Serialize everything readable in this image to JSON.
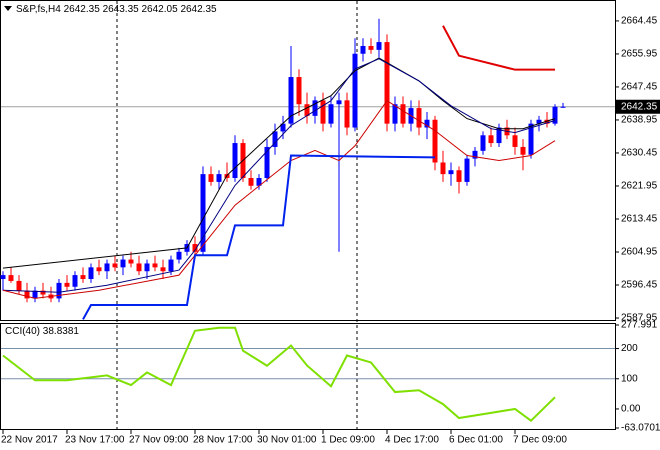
{
  "chart_data": {
    "type": "candlestick",
    "title": "S&P,fs,H4",
    "categories": [
      "22 Nov 2017",
      null,
      null,
      null,
      null,
      null,
      null,
      null,
      "23 Nov 17:00",
      null,
      null,
      null,
      null,
      null,
      null,
      null,
      "27 Nov 09:00",
      null,
      null,
      null,
      null,
      null,
      null,
      null,
      "28 Nov 17:00",
      null,
      null,
      null,
      null,
      null,
      null,
      null,
      "30 Nov 01:00",
      null,
      null,
      null,
      null,
      null,
      null,
      null,
      "1 Dec 09:00",
      null,
      null,
      null,
      null,
      null,
      null,
      null,
      "4 Dec 17:00",
      null,
      null,
      null,
      null,
      null,
      null,
      null,
      "6 Dec 01:00",
      null,
      null,
      null,
      null,
      null,
      null,
      null,
      "7 Dec 09:00",
      null,
      null,
      null,
      null,
      null,
      null
    ],
    "open": [
      2598,
      2599,
      2597.5,
      2595,
      2593,
      2595,
      2594,
      2593,
      2597,
      2596,
      2599,
      2598,
      2601,
      2600,
      2602,
      2601,
      2603,
      2602,
      2600,
      2602,
      2601,
      2600,
      2603,
      2605,
      2607,
      2605,
      2625,
      2623,
      2625,
      2624,
      2633,
      2624,
      2622,
      2624,
      2632,
      2636,
      2638,
      2650,
      2643,
      2640,
      2644,
      2638,
      2643,
      2644,
      2637,
      2656,
      2658,
      2657,
      2659,
      2638,
      2643,
      2638,
      2642,
      2637,
      2639,
      2628,
      2625,
      2626,
      2623,
      2629,
      2631,
      2635,
      2633,
      2637,
      2635,
      2632,
      2630,
      2638,
      2639,
      2638,
      2642.35
    ],
    "high": [
      2600,
      2601,
      2599,
      2597,
      2596,
      2597,
      2596,
      2598,
      2599,
      2600,
      2601,
      2602,
      2603,
      2603,
      2604,
      2604,
      2605,
      2604,
      2603,
      2604,
      2603,
      2604,
      2606,
      2608,
      2609,
      2627,
      2627,
      2626,
      2628,
      2635,
      2634,
      2626,
      2625,
      2634,
      2638,
      2640,
      2658,
      2652,
      2646,
      2645,
      2646,
      2645,
      2646,
      2646,
      2660,
      2660,
      2660,
      2665,
      2661,
      2645,
      2645,
      2644,
      2644,
      2641,
      2640,
      2631,
      2628,
      2627,
      2630,
      2632,
      2636,
      2637,
      2638,
      2639,
      2637,
      2634,
      2639,
      2640,
      2641,
      2643,
      2643.35
    ],
    "low": [
      2595,
      2597,
      2594,
      2592,
      2592,
      2593,
      2592,
      2592,
      2595,
      2595,
      2597,
      2597,
      2599,
      2598,
      2600,
      2599,
      2601,
      2599,
      2598,
      2600,
      2598,
      2599,
      2602,
      2604,
      2604,
      2604,
      2622,
      2621,
      2623,
      2623,
      2623,
      2621,
      2621,
      2623,
      2630,
      2634,
      2637,
      2640,
      2638,
      2638,
      2636,
      2637,
      2605,
      2635,
      2636,
      2654,
      2656,
      2655,
      2636,
      2636,
      2637,
      2636,
      2635,
      2634,
      2626,
      2623,
      2622,
      2620,
      2622,
      2627,
      2630,
      2632,
      2632,
      2634,
      2630,
      2626,
      2629,
      2636,
      2637,
      2637.5,
      2642.05
    ],
    "close": [
      2599,
      2597.5,
      2595,
      2593,
      2595,
      2594,
      2593,
      2597,
      2596,
      2599,
      2598,
      2601,
      2600,
      2602,
      2601,
      2603,
      2602,
      2600,
      2602,
      2601,
      2600,
      2603,
      2605,
      2607,
      2605,
      2625,
      2623,
      2625,
      2624,
      2633,
      2624,
      2622,
      2624,
      2632,
      2636,
      2638,
      2650,
      2643,
      2640,
      2644,
      2638,
      2643,
      2644,
      2637,
      2656,
      2658,
      2657,
      2659,
      2638,
      2643,
      2638,
      2642,
      2637,
      2639,
      2628,
      2625,
      2626,
      2623,
      2629,
      2631,
      2635,
      2633,
      2637,
      2635,
      2632,
      2630,
      2638,
      2639,
      2638,
      2642.35,
      2642.35
    ],
    "up_color": "#0000ff",
    "down_color": "#ff0000",
    "ylim": [
      2587.44,
      2669.58
    ],
    "yticks": [
      2587.95,
      2596.45,
      2604.95,
      2613.45,
      2621.95,
      2630.45,
      2638.95,
      2647.45,
      2655.95,
      2664.45
    ],
    "lines": [
      {
        "color": "#000000",
        "width": 1,
        "x": [
          0,
          23,
          28,
          36,
          41,
          44,
          47,
          52,
          55,
          58,
          62,
          65,
          69
        ],
        "values": [
          2600.8,
          2606,
          2624.7,
          2640,
          2645.2,
          2651.6,
          2654.9,
          2649,
          2643.9,
          2639.3,
          2636.7,
          2636.7,
          2639.3
        ]
      },
      {
        "color": "#000080",
        "width": 1,
        "x": [
          0,
          7,
          13,
          22,
          24,
          29,
          36,
          41,
          44,
          47,
          52,
          56,
          61,
          64,
          69
        ],
        "values": [
          2595.1,
          2594.6,
          2596.4,
          2600.3,
          2605.4,
          2622.1,
          2637.5,
          2643.9,
          2652.1,
          2654.7,
          2649,
          2642.6,
          2636.7,
          2635.7,
          2638.8
        ]
      },
      {
        "color": "#cc0000",
        "width": 1,
        "x": [
          0,
          4,
          12,
          22,
          24,
          29,
          36,
          39,
          42,
          44,
          48,
          50,
          54,
          58,
          62,
          66,
          69
        ],
        "values": [
          2595.1,
          2593,
          2595.1,
          2599,
          2604.1,
          2617,
          2628.5,
          2631.1,
          2628.5,
          2632.3,
          2643.9,
          2641.3,
          2636.2,
          2629.8,
          2628.5,
          2629.8,
          2633.6
        ]
      },
      {
        "color": "#0022ee",
        "width": 2,
        "x": [
          10,
          11,
          23,
          24,
          28,
          29,
          35,
          36,
          54
        ],
        "values": [
          2587.6,
          2591.3,
          2591.3,
          2604.1,
          2604.1,
          2611.8,
          2611.8,
          2629.8,
          2629.3
        ]
      },
      {
        "color": "#e00000",
        "width": 2,
        "x": [
          55,
          57,
          64,
          69
        ],
        "values": [
          2663.2,
          2655.5,
          2651.9,
          2651.9
        ]
      }
    ],
    "indicator": {
      "title": "CCI(40)",
      "color": "#7fe000",
      "x": [
        0,
        4,
        8,
        13,
        16,
        18,
        21,
        24,
        27,
        29,
        30,
        33,
        36,
        38,
        41,
        43,
        46,
        49,
        52,
        55,
        57,
        61,
        64,
        66,
        68,
        69
      ],
      "values": [
        177,
        95,
        95,
        111,
        79,
        121,
        79,
        259,
        269,
        269,
        193,
        143,
        210,
        144,
        75,
        177,
        154,
        56,
        62,
        16,
        -30,
        -13,
        0,
        -39,
        13,
        38.8381
      ],
      "ylim": [
        -63.0701,
        277.991
      ],
      "yticks": [
        277.991,
        200,
        100,
        {
          "value": 0,
          "label": "0.00"
        },
        -63.0701
      ],
      "levels": [
        200,
        100
      ]
    }
  }
}
